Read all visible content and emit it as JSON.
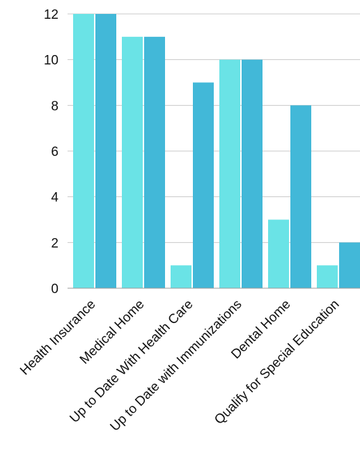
{
  "chart_data": {
    "type": "bar",
    "categories": [
      "Health Insurance",
      "Medical Home",
      "Up to Date With Health Care",
      "Up to Date with Immunizations",
      "Dental Home",
      "Qualify for Special Education"
    ],
    "series": [
      {
        "values": [
          12,
          11,
          1,
          10,
          3,
          1
        ],
        "color": "#6ae3e6"
      },
      {
        "values": [
          12,
          11,
          9,
          10,
          8,
          2
        ],
        "color": "#42b8d8"
      }
    ],
    "ylim": [
      0,
      12
    ],
    "yticks": [
      0,
      2,
      4,
      6,
      8,
      10,
      12
    ],
    "grid": true,
    "grid_color": "#c8c8c8",
    "legend": "none",
    "title": "",
    "xlabel": "",
    "ylabel": ""
  }
}
